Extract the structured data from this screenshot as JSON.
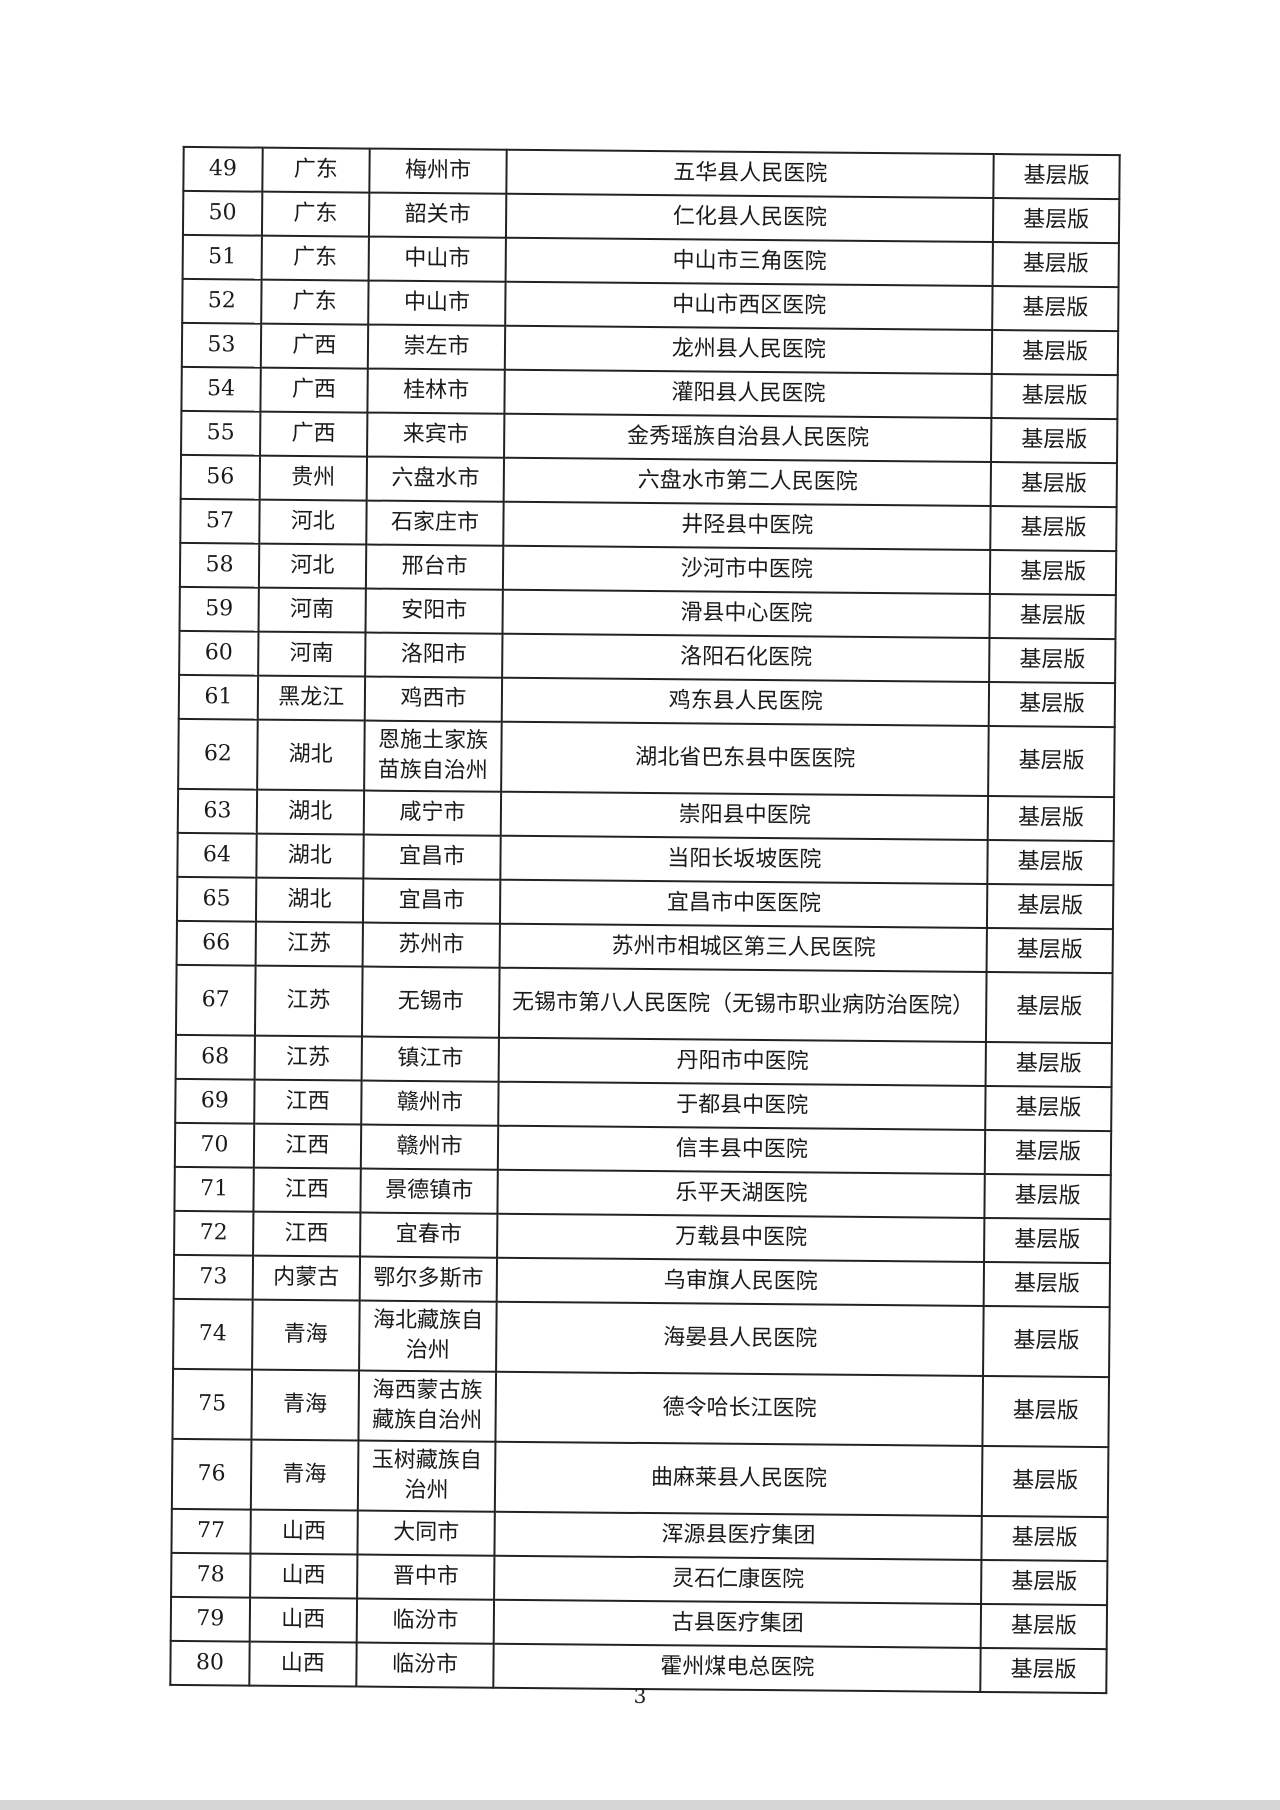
{
  "table": {
    "rows": [
      [
        "49",
        "广东",
        "梅州市",
        "五华县人民医院",
        "基层版"
      ],
      [
        "50",
        "广东",
        "韶关市",
        "仁化县人民医院",
        "基层版"
      ],
      [
        "51",
        "广东",
        "中山市",
        "中山市三角医院",
        "基层版"
      ],
      [
        "52",
        "广东",
        "中山市",
        "中山市西区医院",
        "基层版"
      ],
      [
        "53",
        "广西",
        "崇左市",
        "龙州县人民医院",
        "基层版"
      ],
      [
        "54",
        "广西",
        "桂林市",
        "灌阳县人民医院",
        "基层版"
      ],
      [
        "55",
        "广西",
        "来宾市",
        "金秀瑶族自治县人民医院",
        "基层版"
      ],
      [
        "56",
        "贵州",
        "六盘水市",
        "六盘水市第二人民医院",
        "基层版"
      ],
      [
        "57",
        "河北",
        "石家庄市",
        "井陉县中医院",
        "基层版"
      ],
      [
        "58",
        "河北",
        "邢台市",
        "沙河市中医院",
        "基层版"
      ],
      [
        "59",
        "河南",
        "安阳市",
        "滑县中心医院",
        "基层版"
      ],
      [
        "60",
        "河南",
        "洛阳市",
        "洛阳石化医院",
        "基层版"
      ],
      [
        "61",
        "黑龙江",
        "鸡西市",
        "鸡东县人民医院",
        "基层版"
      ],
      [
        "62",
        "湖北",
        "恩施土家族苗族自治州",
        "湖北省巴东县中医医院",
        "基层版"
      ],
      [
        "63",
        "湖北",
        "咸宁市",
        "崇阳县中医院",
        "基层版"
      ],
      [
        "64",
        "湖北",
        "宜昌市",
        "当阳长坂坡医院",
        "基层版"
      ],
      [
        "65",
        "湖北",
        "宜昌市",
        "宜昌市中医医院",
        "基层版"
      ],
      [
        "66",
        "江苏",
        "苏州市",
        "苏州市相城区第三人民医院",
        "基层版"
      ],
      [
        "67",
        "江苏",
        "无锡市",
        "无锡市第八人民医院（无锡市职业病防治医院）",
        "基层版"
      ],
      [
        "68",
        "江苏",
        "镇江市",
        "丹阳市中医院",
        "基层版"
      ],
      [
        "69",
        "江西",
        "赣州市",
        "于都县中医院",
        "基层版"
      ],
      [
        "70",
        "江西",
        "赣州市",
        "信丰县中医院",
        "基层版"
      ],
      [
        "71",
        "江西",
        "景德镇市",
        "乐平天湖医院",
        "基层版"
      ],
      [
        "72",
        "江西",
        "宜春市",
        "万载县中医院",
        "基层版"
      ],
      [
        "73",
        "内蒙古",
        "鄂尔多斯市",
        "乌审旗人民医院",
        "基层版"
      ],
      [
        "74",
        "青海",
        "海北藏族自治州",
        "海晏县人民医院",
        "基层版"
      ],
      [
        "75",
        "青海",
        "海西蒙古族藏族自治州",
        "德令哈长江医院",
        "基层版"
      ],
      [
        "76",
        "青海",
        "玉树藏族自治州",
        "曲麻莱县人民医院",
        "基层版"
      ],
      [
        "77",
        "山西",
        "大同市",
        "浑源县医疗集团",
        "基层版"
      ],
      [
        "78",
        "山西",
        "晋中市",
        "灵石仁康医院",
        "基层版"
      ],
      [
        "79",
        "山西",
        "临汾市",
        "古县医疗集团",
        "基层版"
      ],
      [
        "80",
        "山西",
        "临汾市",
        "霍州煤电总医院",
        "基层版"
      ]
    ]
  },
  "page_number": "3"
}
